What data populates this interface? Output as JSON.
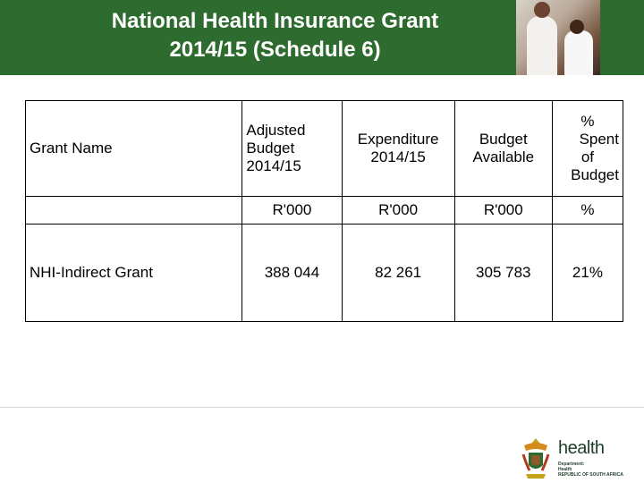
{
  "header": {
    "title_line1": "National Health Insurance Grant",
    "title_line2": "2014/15 (Schedule 6)",
    "background_color": "#2e6b2e"
  },
  "table": {
    "columns": [
      {
        "header": "Grant Name",
        "unit": ""
      },
      {
        "header_lines": [
          "Adjusted",
          "Budget",
          "2014/15"
        ],
        "unit": "R'000"
      },
      {
        "header_lines": [
          "Expenditure",
          "2014/15"
        ],
        "unit": "R'000"
      },
      {
        "header_lines": [
          "Budget",
          "Available"
        ],
        "unit": "R'000"
      },
      {
        "header_lines": [
          "%",
          "Spent",
          "of",
          "Budget"
        ],
        "unit": "%"
      }
    ],
    "rows": [
      {
        "grant_name": "NHI-Indirect Grant",
        "adjusted_budget": "388 044",
        "expenditure": "82 261",
        "budget_available": "305 783",
        "percent_spent": "21%"
      }
    ]
  },
  "logo": {
    "icon": "coat-of-arms-icon",
    "name": "health",
    "line1": "Department:",
    "line2": "Health",
    "line3": "REPUBLIC OF SOUTH AFRICA"
  }
}
